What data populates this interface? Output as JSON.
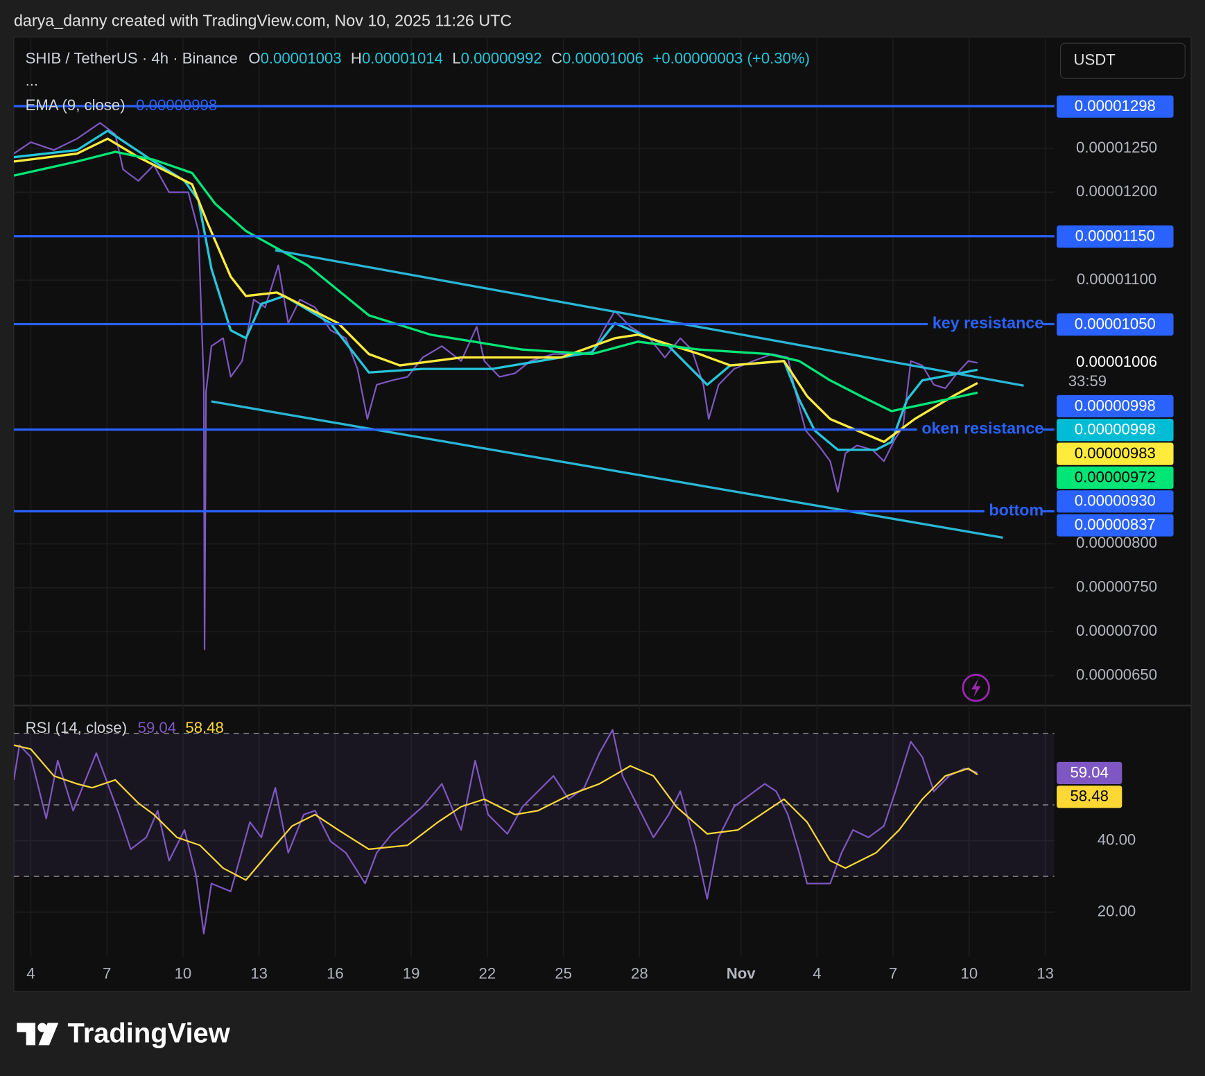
{
  "header": {
    "credit": "darya_danny created with TradingView.com, Nov 10, 2025 11:26 UTC",
    "currency": "USDT",
    "more": "...",
    "watermark": "TradingView"
  },
  "chart_data": [
    {
      "type": "line",
      "title": "SHIB / TetherUS · 4h · Binance",
      "ohlc": [
        {
          "label": "O",
          "value": 1.003e-05
        },
        {
          "label": "H",
          "value": 1.014e-05
        },
        {
          "label": "L",
          "value": 9.92e-06
        },
        {
          "label": "C",
          "value": 1.006e-05
        }
      ],
      "change": "+0.00000003 (+0.30%)",
      "indicator": {
        "name": "EMA (9, close)",
        "value": 9.98e-06,
        "color": "#2962ff"
      },
      "xlim": [
        -0.67,
        40.36
      ],
      "xticks": [
        {
          "value": 0,
          "label": "4"
        },
        {
          "value": 3,
          "label": "7"
        },
        {
          "value": 6,
          "label": "10"
        },
        {
          "value": 9,
          "label": "13"
        },
        {
          "value": 12,
          "label": "16"
        },
        {
          "value": 15,
          "label": "19"
        },
        {
          "value": 18,
          "label": "22"
        },
        {
          "value": 21,
          "label": "25"
        },
        {
          "value": 24,
          "label": "28"
        },
        {
          "value": 28,
          "label": "Nov"
        },
        {
          "value": 31,
          "label": "4"
        },
        {
          "value": 34,
          "label": "7"
        },
        {
          "value": 37,
          "label": "10"
        },
        {
          "value": 40,
          "label": "13"
        }
      ],
      "ylim": [
        6.16e-06,
        1.375e-05
      ],
      "yticks": [
        {
          "value": 1.25e-05,
          "label": "0.00001250"
        },
        {
          "value": 1.2e-05,
          "label": "0.00001200"
        },
        {
          "value": 1.1e-05,
          "label": "0.00001100"
        },
        {
          "value": 8e-06,
          "label": "0.00000800"
        },
        {
          "value": 7.5e-06,
          "label": "0.00000750"
        },
        {
          "value": 7e-06,
          "label": "0.00000700"
        },
        {
          "value": 6.5e-06,
          "label": "0.00000650"
        }
      ],
      "grid": true,
      "series": [
        {
          "color": "#7e57c2",
          "width": 2,
          "x": [
            -0.67,
            0,
            0.91,
            1.82,
            2.73,
            3.33,
            3.64,
            4.24,
            4.85,
            5.45,
            6.21,
            6.61,
            6.82,
            6.85,
            6.91,
            7.12,
            7.58,
            7.88,
            8.33,
            8.79,
            9.24,
            9.76,
            10.15,
            10.61,
            11.21,
            11.82,
            12.42,
            12.88,
            13.27,
            13.64,
            14.24,
            14.85,
            15.45,
            16.21,
            16.97,
            17.58,
            17.88,
            18.48,
            19.09,
            19.7,
            20.61,
            21.52,
            22.12,
            22.58,
            23.03,
            23.64,
            24.39,
            25,
            25.61,
            26.06,
            26.52,
            26.73,
            27.12,
            27.73,
            28.48,
            29.24,
            29.85,
            30.15,
            30.55,
            31.06,
            31.52,
            31.82,
            32.12,
            32.58,
            33.18,
            33.64,
            34.09,
            34.39,
            34.7,
            35.15,
            35.61,
            36.06,
            36.52,
            36.97,
            37.33
          ],
          "values": [
            1.244e-05,
            1.257e-05,
            1.248e-05,
            1.261e-05,
            1.279e-05,
            1.266e-05,
            1.226e-05,
            1.213e-05,
            1.231e-05,
            1.2e-05,
            1.2e-05,
            1.156e-05,
            9.81e-06,
            6.8e-06,
            9.73e-06,
            1.025e-05,
            1.034e-05,
            9.9e-06,
            1.008e-05,
            1.078e-05,
            1.069e-05,
            1.117e-05,
            1.051e-05,
            1.078e-05,
            1.069e-05,
            1.043e-05,
            1.034e-05,
            9.99e-06,
            9.42e-06,
            9.81e-06,
            9.86e-06,
            9.9e-06,
            1.012e-05,
            1.025e-05,
            1.008e-05,
            1.047e-05,
            1.008e-05,
            9.9e-06,
            9.94e-06,
            1.008e-05,
            1.016e-05,
            1.016e-05,
            1.016e-05,
            1.043e-05,
            1.065e-05,
            1.047e-05,
            1.034e-05,
            1.012e-05,
            1.034e-05,
            1.021e-05,
            9.81e-06,
            9.42e-06,
            9.81e-06,
            9.99e-06,
            1.008e-05,
            1.016e-05,
            1.012e-05,
            9.73e-06,
            9.29e-06,
            9.12e-06,
            8.94e-06,
            8.59e-06,
            9.03e-06,
            9.12e-06,
            9.07e-06,
            8.94e-06,
            9.2e-06,
            9.33e-06,
            1.008e-05,
            1.003e-05,
            9.81e-06,
            9.77e-06,
            9.94e-06,
            1.008e-05,
            1.006e-05
          ]
        },
        {
          "color": "#26c6da",
          "width": 3,
          "x": [
            -0.67,
            1.82,
            3.03,
            4.85,
            6.06,
            6.61,
            7.12,
            7.88,
            8.48,
            9.09,
            10,
            11.82,
            13.33,
            15.45,
            18.18,
            22.12,
            23.03,
            25.15,
            26.67,
            27.58,
            29.7,
            30.3,
            30.91,
            31.82,
            33.33,
            33.94,
            34.55,
            35.15,
            37.33
          ],
          "values": [
            1.24e-05,
            1.248e-05,
            1.27e-05,
            1.235e-05,
            1.213e-05,
            1.191e-05,
            1.113e-05,
            1.043e-05,
            1.034e-05,
            1.073e-05,
            1.082e-05,
            1.051e-05,
            9.95e-06,
            9.99e-06,
            9.99e-06,
            1.018e-05,
            1.051e-05,
            1.025e-05,
            9.81e-06,
            1.003e-05,
            1.008e-05,
            9.64e-06,
            9.29e-06,
            9.07e-06,
            9.07e-06,
            9.16e-06,
            9.64e-06,
            9.86e-06,
            9.98e-06
          ]
        },
        {
          "color": "#ffeb3b",
          "width": 3,
          "x": [
            -0.67,
            1.82,
            3.03,
            4.24,
            6.36,
            6.97,
            7.88,
            8.48,
            9.7,
            12.12,
            13.33,
            14.55,
            16.97,
            20.91,
            23.03,
            23.94,
            26.36,
            27.58,
            29.7,
            30.61,
            31.52,
            33.64,
            34.85,
            36.36,
            37.33
          ],
          "values": [
            1.235e-05,
            1.244e-05,
            1.261e-05,
            1.24e-05,
            1.209e-05,
            1.165e-05,
            1.104e-05,
            1.082e-05,
            1.086e-05,
            1.051e-05,
            1.016e-05,
            1.003e-05,
            1.012e-05,
            1.012e-05,
            1.034e-05,
            1.038e-05,
            1.016e-05,
            1.003e-05,
            1.008e-05,
            9.68e-06,
            9.42e-06,
            9.16e-06,
            9.42e-06,
            9.68e-06,
            9.83e-06
          ]
        },
        {
          "color": "#00e676",
          "width": 3,
          "x": [
            -0.67,
            1.82,
            3.33,
            4.85,
            6.36,
            7.27,
            8.48,
            10.91,
            13.33,
            15.76,
            19.39,
            22.12,
            23.94,
            26.36,
            29.09,
            30.3,
            31.52,
            32.73,
            33.94,
            36.06,
            37.33
          ],
          "values": [
            1.219e-05,
            1.235e-05,
            1.246e-05,
            1.237e-05,
            1.222e-05,
            1.187e-05,
            1.156e-05,
            1.117e-05,
            1.06e-05,
            1.038e-05,
            1.021e-05,
            1.016e-05,
            1.03e-05,
            1.021e-05,
            1.016e-05,
            1.008e-05,
            9.86e-06,
            9.68e-06,
            9.51e-06,
            9.64e-06,
            9.72e-06
          ]
        }
      ],
      "level_color": "#2962ff",
      "levels": [
        {
          "value": 1.298e-05
        },
        {
          "value": 1.15e-05
        },
        {
          "value": 1.05e-05,
          "text": "key resistance"
        },
        {
          "value": 9.3e-06,
          "text": "oken resistance"
        },
        {
          "value": 8.37e-06,
          "text": "bottom"
        }
      ],
      "trendline_color": "#29b6d6",
      "trendlines": [
        {
          "x": [
            9.64,
            39.15
          ],
          "values": [
            1.134e-05,
            9.8e-06
          ]
        },
        {
          "x": [
            7.12,
            38.33
          ],
          "values": [
            9.62e-06,
            8.07e-06
          ]
        }
      ],
      "price_labels": [
        {
          "value": 1.298e-05,
          "label": "0.00001298",
          "color": "#2962ff",
          "text_color": "#ffffff"
        },
        {
          "value": 1.15e-05,
          "label": "0.00001150",
          "color": "#2962ff",
          "text_color": "#ffffff"
        },
        {
          "value": 1.05e-05,
          "label": "0.00001050",
          "color": "#2962ff",
          "text_color": "#ffffff"
        },
        {
          "value": 1.006e-05,
          "label": "0.00001006",
          "countdown": "33:59",
          "text_color": "#ffffff"
        },
        {
          "value": 9.98e-06,
          "label": "0.00000998",
          "color": "#2962ff",
          "text_color": "#ffffff"
        },
        {
          "value": 9.98e-06,
          "label": "0.00000998",
          "color": "#00bcd4",
          "text_color": "#ffffff"
        },
        {
          "value": 9.83e-06,
          "label": "0.00000983",
          "color": "#ffeb3b",
          "text_color": "#000000"
        },
        {
          "value": 9.72e-06,
          "label": "0.00000972",
          "color": "#00e676",
          "text_color": "#000000"
        },
        {
          "value": 9.3e-06,
          "label": "0.00000930",
          "color": "#2962ff",
          "text_color": "#ffffff"
        },
        {
          "value": 8.37e-06,
          "label": "0.00000837",
          "color": "#2962ff",
          "text_color": "#ffffff"
        }
      ]
    },
    {
      "type": "line",
      "title": "RSI (14, close)",
      "xlim": [
        -0.67,
        40.36
      ],
      "ylim": [
        7.5,
        77.8
      ],
      "yticks": [
        {
          "value": 40,
          "label": "40.00"
        },
        {
          "value": 20,
          "label": "20.00"
        }
      ],
      "levels": [
        70,
        50,
        30
      ],
      "band_color": "#7e57c2",
      "series": [
        {
          "color": "#7e57c2",
          "width": 2,
          "x": [
            -0.67,
            -0.45,
            0,
            0.61,
            1.06,
            1.67,
            2.58,
            3.48,
            3.94,
            4.55,
            5,
            5.45,
            6.06,
            6.52,
            6.82,
            7.12,
            7.88,
            8.64,
            9.09,
            9.64,
            10.15,
            10.76,
            11.21,
            11.82,
            12.42,
            13.18,
            13.64,
            14.24,
            15.45,
            16.21,
            16.97,
            17.52,
            18.03,
            18.79,
            19.39,
            20.61,
            21.21,
            21.82,
            22.42,
            22.94,
            23.33,
            23.94,
            24.55,
            25.15,
            25.61,
            26.21,
            26.67,
            27.12,
            27.73,
            28.94,
            29.39,
            29.85,
            30.3,
            30.61,
            31.52,
            31.97,
            32.42,
            33.03,
            33.64,
            34.09,
            34.7,
            35.15,
            35.61,
            36.21,
            36.82,
            37.33
          ],
          "values": [
            57,
            66.7,
            63.4,
            46.2,
            62.4,
            48.4,
            64.5,
            47.3,
            37.6,
            40.9,
            48.4,
            34.4,
            43,
            30.1,
            14,
            28,
            25.8,
            45.2,
            40.9,
            54.8,
            36.6,
            47.3,
            48.4,
            39.8,
            36.6,
            28,
            36.6,
            41.9,
            49.5,
            55.9,
            43,
            62.4,
            47.3,
            41.9,
            49.5,
            58.1,
            51.6,
            54.8,
            64.5,
            71,
            58.1,
            49.5,
            40.9,
            47.3,
            53.8,
            38.7,
            23.7,
            40.9,
            49.5,
            55.9,
            53.8,
            47.3,
            36.6,
            28,
            28,
            36.6,
            43,
            40.9,
            44.1,
            53.8,
            67.7,
            63.4,
            53.8,
            58.1,
            60.2,
            59.04
          ]
        },
        {
          "color": "#fdd835",
          "width": 2,
          "x": [
            -0.67,
            0,
            0.91,
            1.82,
            2.42,
            3.33,
            4.24,
            4.85,
            5.76,
            6.67,
            7.58,
            8.48,
            9.39,
            10.3,
            11.21,
            12.12,
            13.33,
            14.85,
            16.06,
            16.97,
            17.88,
            19.09,
            20,
            21.21,
            22.42,
            23.64,
            24.55,
            25.45,
            26.67,
            27.88,
            28.79,
            29.7,
            30.61,
            31.52,
            32.12,
            33.33,
            34.24,
            35.15,
            36.06,
            36.97,
            37.33
          ],
          "values": [
            66.7,
            65.6,
            58.1,
            55.9,
            54.8,
            57,
            50.5,
            47.3,
            40.9,
            38.7,
            32.3,
            29,
            36.6,
            44.1,
            47.3,
            43,
            37.6,
            38.7,
            45.2,
            49.5,
            51.6,
            47.3,
            48.4,
            52.7,
            55.9,
            60.9,
            58.1,
            49.5,
            41.9,
            43,
            47.3,
            51.6,
            45.2,
            34.4,
            32.3,
            36.6,
            43,
            51.6,
            58.1,
            60.2,
            58.48
          ]
        }
      ],
      "price_labels": [
        {
          "value": 59.04,
          "color": "#7e57c2",
          "text_color": "#ffffff"
        },
        {
          "value": 58.48,
          "color": "#fdd835",
          "text_color": "#000000"
        }
      ]
    }
  ]
}
